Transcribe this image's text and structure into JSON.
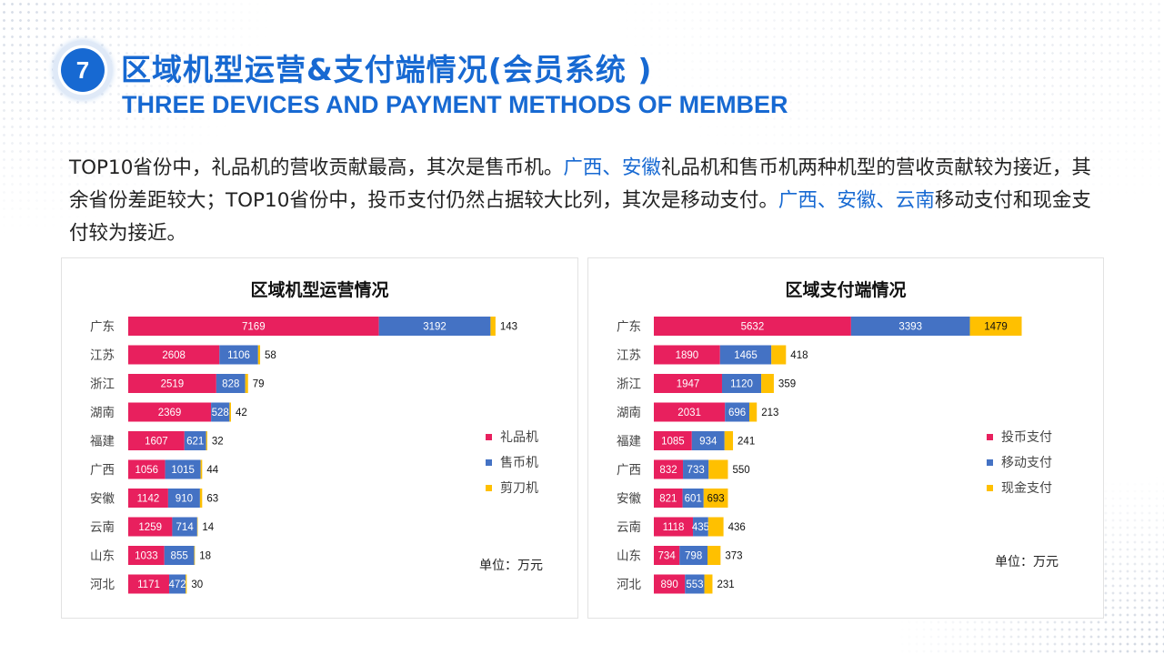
{
  "header": {
    "number": "7",
    "title_cn": "区域机型运营&支付端情况(会员系统 )",
    "title_en": "THREE DEVICES AND PAYMENT METHODS OF MEMBER"
  },
  "summary": {
    "p1": "TOP10省份中，礼品机的营收贡献最高，其次是售币机。",
    "h1": "广西、安徽",
    "p2": "礼品机和售币机两种机型的营收贡献较为接近，其余省份差距较大；TOP10省份中，投币支付仍然占据较大比列，其次是移动支付。",
    "h2": "广西、安徽、云南",
    "p3": "移动支付和现金支付较为接近。"
  },
  "colors": {
    "series1": "#e8205e",
    "series2": "#4472c4",
    "series3": "#ffc000",
    "accent": "#1769d2"
  },
  "chart_data": [
    {
      "type": "bar",
      "orientation": "horizontal",
      "stacked": true,
      "title": "区域机型运营情况",
      "unit": "单位：万元",
      "categories": [
        "广东",
        "江苏",
        "浙江",
        "湖南",
        "福建",
        "广西",
        "安徽",
        "云南",
        "山东",
        "河北"
      ],
      "series": [
        {
          "name": "礼品机",
          "values": [
            7169,
            2608,
            2519,
            2369,
            1607,
            1056,
            1142,
            1259,
            1033,
            1171
          ]
        },
        {
          "name": "售币机",
          "values": [
            3192,
            1106,
            828,
            528,
            621,
            1015,
            910,
            714,
            855,
            472
          ]
        },
        {
          "name": "剪刀机",
          "values": [
            143,
            58,
            79,
            42,
            32,
            44,
            63,
            14,
            18,
            30
          ]
        }
      ],
      "legend": "right"
    },
    {
      "type": "bar",
      "orientation": "horizontal",
      "stacked": true,
      "title": "区域支付端情况",
      "unit": "单位：万元",
      "categories": [
        "广东",
        "江苏",
        "浙江",
        "湖南",
        "福建",
        "广西",
        "安徽",
        "云南",
        "山东",
        "河北"
      ],
      "series": [
        {
          "name": "投币支付",
          "values": [
            5632,
            1890,
            1947,
            2031,
            1085,
            832,
            821,
            1118,
            734,
            890
          ]
        },
        {
          "name": "移动支付",
          "values": [
            3393,
            1465,
            1120,
            696,
            934,
            733,
            601,
            435,
            798,
            553
          ]
        },
        {
          "name": "现金支付",
          "values": [
            1479,
            418,
            359,
            213,
            241,
            550,
            693,
            436,
            373,
            231
          ]
        }
      ],
      "legend": "right"
    }
  ]
}
